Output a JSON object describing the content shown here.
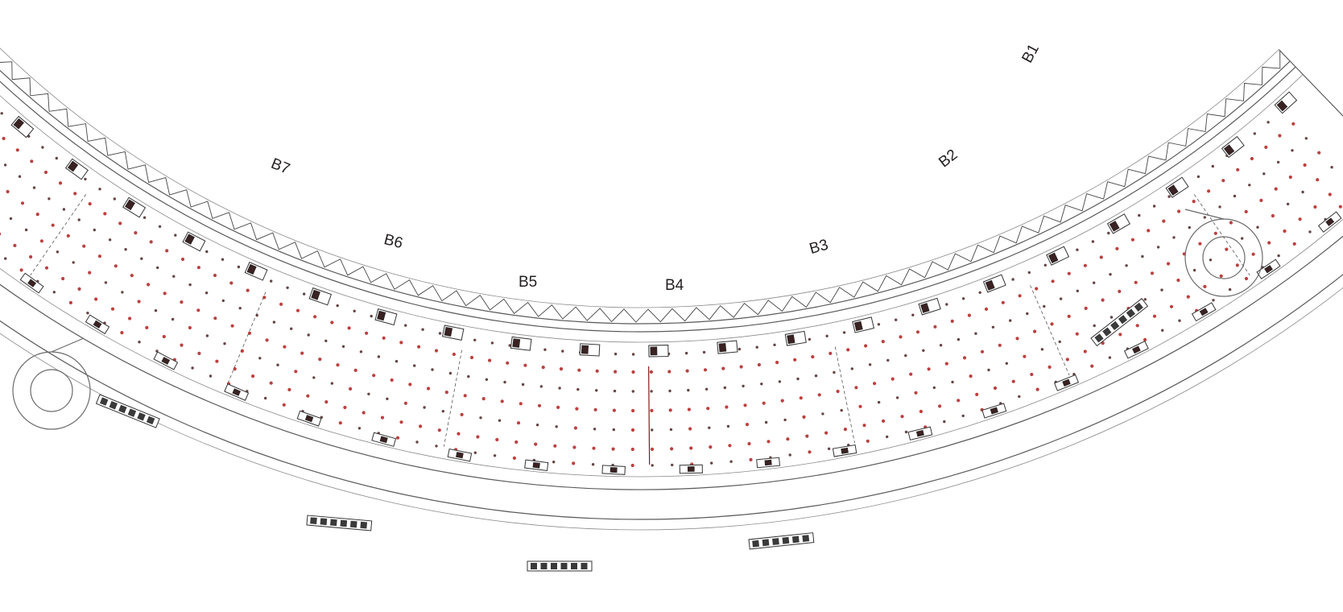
{
  "diagram": {
    "buildings": [
      {
        "id": "b1",
        "label": "B1"
      },
      {
        "id": "b2",
        "label": "B2"
      },
      {
        "id": "b3",
        "label": "B3"
      },
      {
        "id": "b4",
        "label": "B4"
      },
      {
        "id": "b5",
        "label": "B5"
      },
      {
        "id": "b6",
        "label": "B6"
      },
      {
        "id": "b7",
        "label": "B7"
      }
    ],
    "colors": {
      "column_red": "#b01e1e",
      "column_dark": "#4a2424",
      "line": "#555555",
      "background": "#ffffff"
    }
  }
}
